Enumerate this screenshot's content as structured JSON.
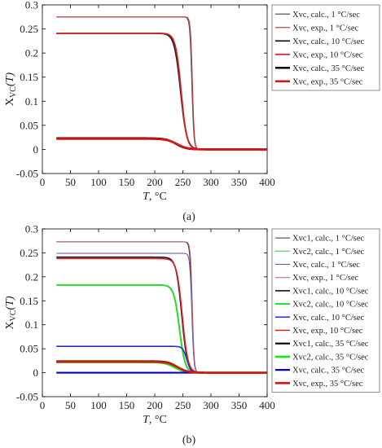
{
  "figure": {
    "caption_a": "(a)",
    "caption_b": "(b)"
  },
  "chart_data": [
    {
      "type": "line",
      "panel": "a",
      "xlabel_prefix": "T",
      "xlabel_suffix": ", °C",
      "ylabel_main": "X",
      "ylabel_sub": "VC",
      "ylabel_arg": "(T)",
      "xlim": [
        0,
        400
      ],
      "ylim": [
        -0.05,
        0.3
      ],
      "xticks": [
        0,
        50,
        100,
        150,
        200,
        250,
        300,
        350,
        400
      ],
      "yticks": [
        -0.05,
        0,
        0.05,
        0.1,
        0.15,
        0.2,
        0.25,
        0.3
      ],
      "ytick_labels": [
        "-0.05",
        "0",
        "0.05",
        "0.1",
        "0.15",
        "0.2",
        "0.25",
        "0.3"
      ],
      "xtick_labels": [
        "0",
        "50",
        "100",
        "150",
        "200",
        "250",
        "300",
        "350",
        "400"
      ],
      "grid": false,
      "legend_position": "top-right-outside",
      "series": [
        {
          "name": "Xvc, calc., 1 °C/sec",
          "color": "#555555",
          "width": 1.2,
          "x0": 25,
          "x1": 400,
          "plateau": 0.275,
          "midpoint": 266,
          "steepness": 1.8
        },
        {
          "name": "Xvc, exp., 1 °C/sec",
          "color": "#c04040",
          "width": 1.2,
          "x0": 25,
          "x1": 400,
          "plateau": 0.275,
          "midpoint": 267,
          "steepness": 1.7
        },
        {
          "name": "Xvc, calc., 10 °C/sec",
          "color": "#1a1a1a",
          "width": 1.8,
          "x0": 25,
          "x1": 400,
          "plateau": 0.241,
          "midpoint": 246,
          "steepness": 5.5
        },
        {
          "name": "Xvc, exp., 10 °C/sec",
          "color": "#d62020",
          "width": 1.8,
          "x0": 25,
          "x1": 400,
          "plateau": 0.241,
          "midpoint": 247,
          "steepness": 5.0
        },
        {
          "name": "Xvc, calc., 35 °C/sec",
          "color": "#000000",
          "width": 2.6,
          "x0": 25,
          "x1": 400,
          "plateau": 0.023,
          "midpoint": 238,
          "steepness": 9.0
        },
        {
          "name": "Xvc, exp., 35 °C/sec",
          "color": "#e01010",
          "width": 2.6,
          "x0": 25,
          "x1": 400,
          "plateau": 0.022,
          "midpoint": 240,
          "steepness": 9.5
        }
      ]
    },
    {
      "type": "line",
      "panel": "b",
      "xlabel_prefix": "T",
      "xlabel_suffix": ", °C",
      "ylabel_main": "X",
      "ylabel_sub": "VC",
      "ylabel_arg": "(T)",
      "xlim": [
        0,
        400
      ],
      "ylim": [
        -0.05,
        0.3
      ],
      "xticks": [
        0,
        50,
        100,
        150,
        200,
        250,
        300,
        350,
        400
      ],
      "yticks": [
        -0.05,
        0,
        0.05,
        0.1,
        0.15,
        0.2,
        0.25,
        0.3
      ],
      "ytick_labels": [
        "-0.05",
        "0",
        "0.05",
        "0.1",
        "0.15",
        "0.2",
        "0.25",
        "0.3"
      ],
      "xtick_labels": [
        "0",
        "50",
        "100",
        "150",
        "200",
        "250",
        "300",
        "350",
        "400"
      ],
      "grid": false,
      "legend_position": "top-right-outside",
      "series": [
        {
          "name": "Xvc1, calc., 1 °C/sec",
          "color": "#333333",
          "width": 1.0,
          "x0": 25,
          "x1": 400,
          "plateau": 0.273,
          "midpoint": 266,
          "steepness": 1.8
        },
        {
          "name": "Xvc2, calc., 1 °C/sec",
          "color": "#33cc33",
          "width": 1.0,
          "x0": 25,
          "x1": 400,
          "plateau": 0.0,
          "midpoint": 266,
          "steepness": 1.8
        },
        {
          "name": "Xvc, calc., 1 °C/sec",
          "color": "#5555aa",
          "width": 1.0,
          "x0": 25,
          "x1": 400,
          "plateau": 0.249,
          "midpoint": 266,
          "steepness": 1.8
        },
        {
          "name": "Xvc, exp., 1 °C/sec",
          "color": "#c06060",
          "width": 1.0,
          "x0": 25,
          "x1": 400,
          "plateau": 0.273,
          "midpoint": 267,
          "steepness": 1.7
        },
        {
          "name": "Xvc1, calc., 10 °C/sec",
          "color": "#111111",
          "width": 1.6,
          "x0": 25,
          "x1": 400,
          "plateau": 0.241,
          "midpoint": 248,
          "steepness": 5.0
        },
        {
          "name": "Xvc2, calc., 10 °C/sec",
          "color": "#22dd22",
          "width": 2.0,
          "x0": 25,
          "x1": 400,
          "plateau": 0.183,
          "midpoint": 244,
          "steepness": 5.0
        },
        {
          "name": "Xvc, calc., 10 °C/sec",
          "color": "#2233cc",
          "width": 1.6,
          "x0": 25,
          "x1": 400,
          "plateau": 0.055,
          "midpoint": 257,
          "steepness": 3.5
        },
        {
          "name": "Xvc, exp., 10 °C/sec",
          "color": "#dd2222",
          "width": 1.6,
          "x0": 25,
          "x1": 400,
          "plateau": 0.238,
          "midpoint": 249,
          "steepness": 5.0
        },
        {
          "name": "Xvc1, calc., 35 °C/sec",
          "color": "#000000",
          "width": 2.2,
          "x0": 25,
          "x1": 400,
          "plateau": 0.024,
          "midpoint": 240,
          "steepness": 8.0
        },
        {
          "name": "Xvc2, calc., 35 °C/sec",
          "color": "#11ee11",
          "width": 2.6,
          "x0": 25,
          "x1": 400,
          "plateau": 0.022,
          "midpoint": 236,
          "steepness": 9.0
        },
        {
          "name": "Xvc, calc., 35 °C/sec",
          "color": "#0000cc",
          "width": 2.2,
          "x0": 25,
          "x1": 400,
          "plateau": 0.0,
          "midpoint": 240,
          "steepness": 8.0
        },
        {
          "name": "Xvc, exp., 35 °C/sec",
          "color": "#e01010",
          "width": 2.6,
          "x0": 25,
          "x1": 400,
          "plateau": 0.023,
          "midpoint": 241,
          "steepness": 9.0
        }
      ]
    }
  ]
}
